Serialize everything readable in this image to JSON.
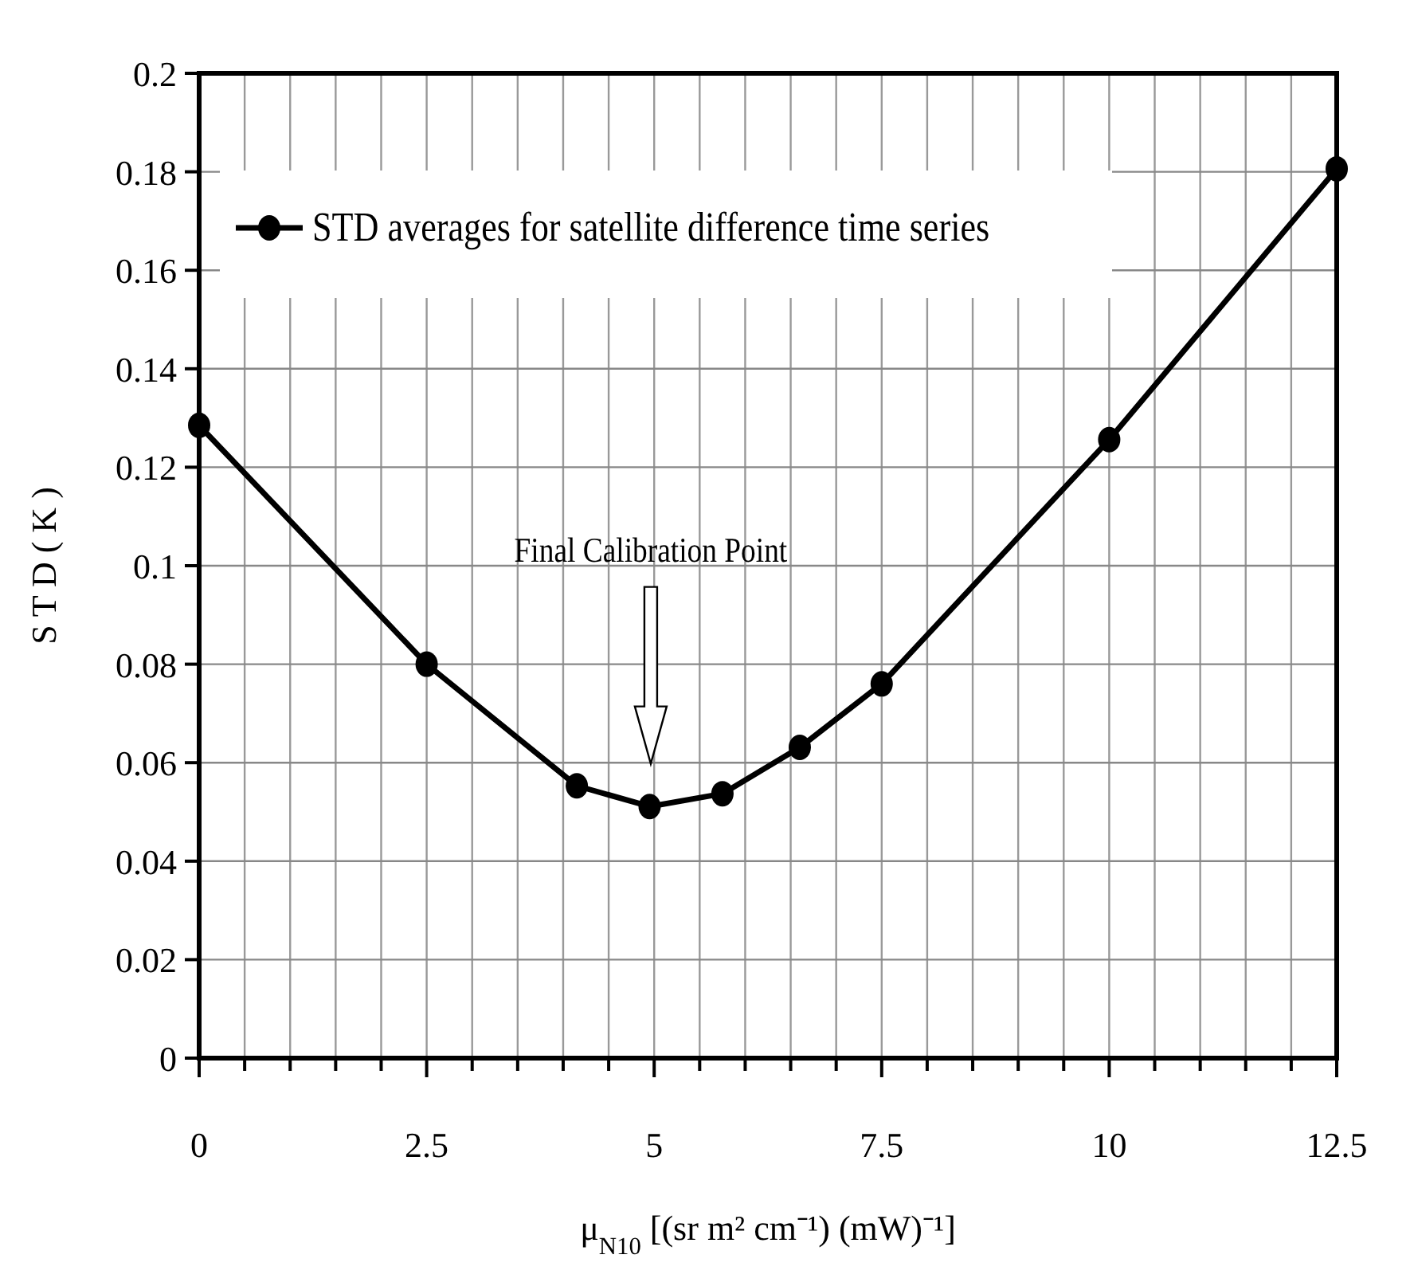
{
  "chart_data": {
    "type": "line",
    "xlabel": "μ$_{N10}$ [(sr m² cm⁻¹) (mW)⁻¹]",
    "ylabel": "S T D  ( K )",
    "x": [
      0,
      2.5,
      4.15,
      4.95,
      5.75,
      6.6,
      7.5,
      10,
      12.5
    ],
    "series": [
      {
        "name": "STD averages for satellite difference time series",
        "color": "#000000",
        "values": [
          0.1285,
          0.08,
          0.0553,
          0.0511,
          0.0537,
          0.0631,
          0.076,
          0.1256,
          0.1806
        ]
      }
    ],
    "xlim": [
      0,
      12.5
    ],
    "xticks": [
      0,
      {
        "value": 0.5,
        "label": null
      },
      {
        "value": 1,
        "label": null
      },
      {
        "value": 1.5,
        "label": null
      },
      {
        "value": 2,
        "label": null
      },
      2.5,
      {
        "value": 3,
        "label": null
      },
      {
        "value": 3.5,
        "label": null
      },
      {
        "value": 4,
        "label": null
      },
      {
        "value": 4.5,
        "label": null
      },
      5,
      {
        "value": 5.5,
        "label": null
      },
      {
        "value": 6,
        "label": null
      },
      {
        "value": 6.5,
        "label": null
      },
      {
        "value": 7,
        "label": null
      },
      7.5,
      {
        "value": 8,
        "label": null
      },
      {
        "value": 8.5,
        "label": null
      },
      {
        "value": 9,
        "label": null
      },
      {
        "value": 9.5,
        "label": null
      },
      10,
      {
        "value": 10.5,
        "label": null
      },
      {
        "value": 11,
        "label": null
      },
      {
        "value": 11.5,
        "label": null
      },
      {
        "value": 12,
        "label": null
      },
      12.5
    ],
    "ylim": [
      0,
      0.2
    ],
    "yticks": [
      0,
      0.02,
      0.04,
      0.06,
      0.08,
      0.1,
      0.12,
      0.14,
      0.16,
      0.18,
      0.2
    ],
    "grid": true,
    "legend": "top left",
    "marker": "circle",
    "line_style": "solid",
    "annotations": [
      "Final Calibration Point"
    ]
  }
}
